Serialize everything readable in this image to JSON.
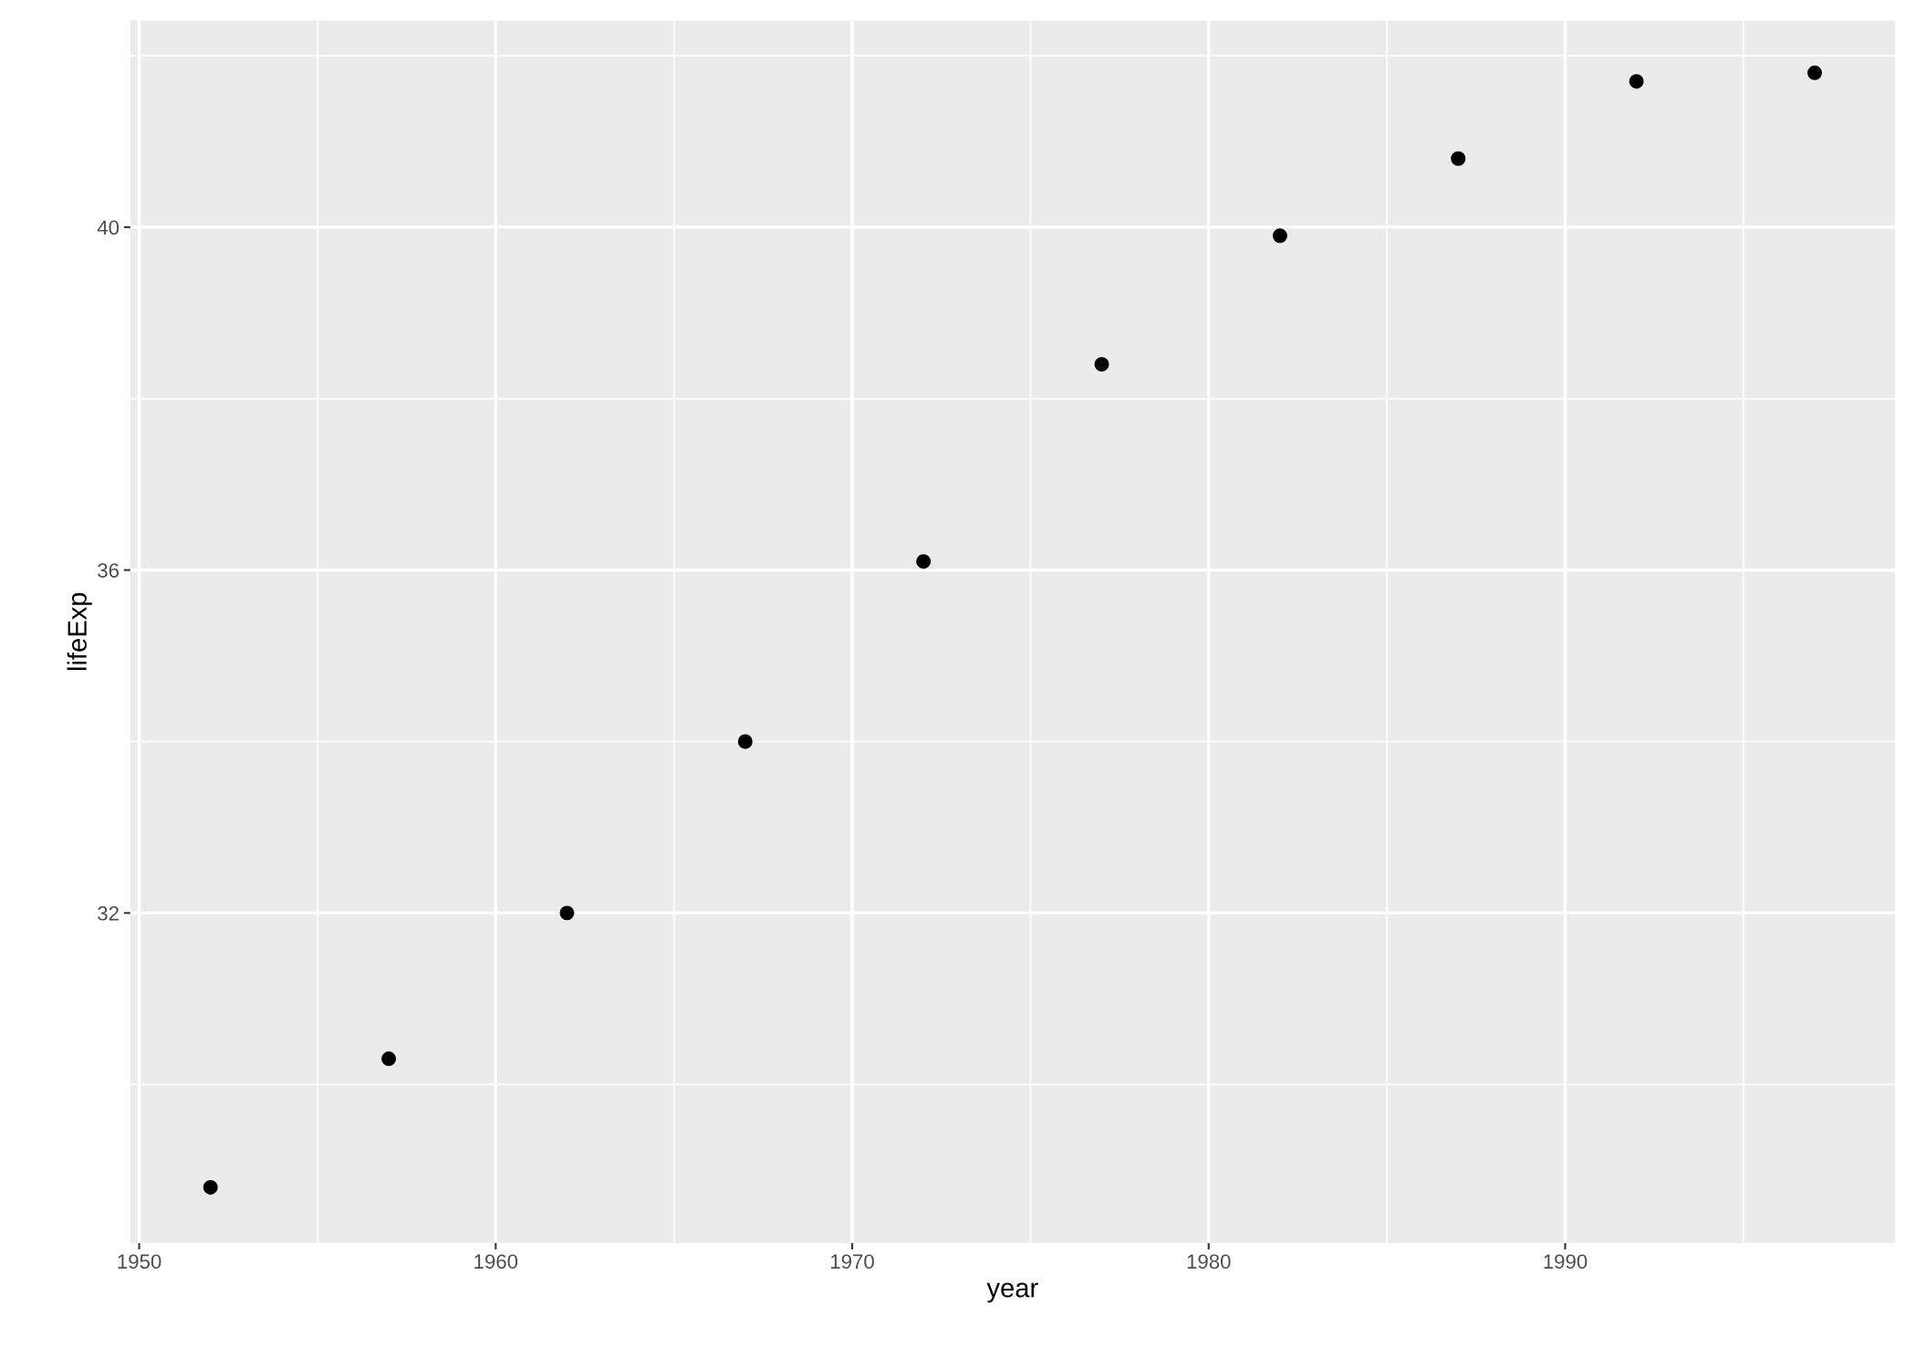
{
  "chart_data": {
    "type": "scatter",
    "xlabel": "year",
    "ylabel": "lifeExp",
    "x": [
      1952,
      1957,
      1962,
      1967,
      1972,
      1977,
      1982,
      1987,
      1992,
      1997
    ],
    "series": [
      {
        "color": "#000000",
        "values": [
          28.8,
          30.3,
          32.0,
          34.0,
          36.1,
          38.4,
          39.9,
          40.8,
          41.7,
          41.8
        ]
      }
    ],
    "xlim": [
      1949.75,
      1999.25
    ],
    "ylim": [
      28.15,
      42.41
    ],
    "xticks": [
      1950,
      1960,
      1970,
      1980,
      1990
    ],
    "yticks": [
      32,
      36,
      40
    ],
    "grid": true,
    "marker": "circle",
    "legend": false
  }
}
